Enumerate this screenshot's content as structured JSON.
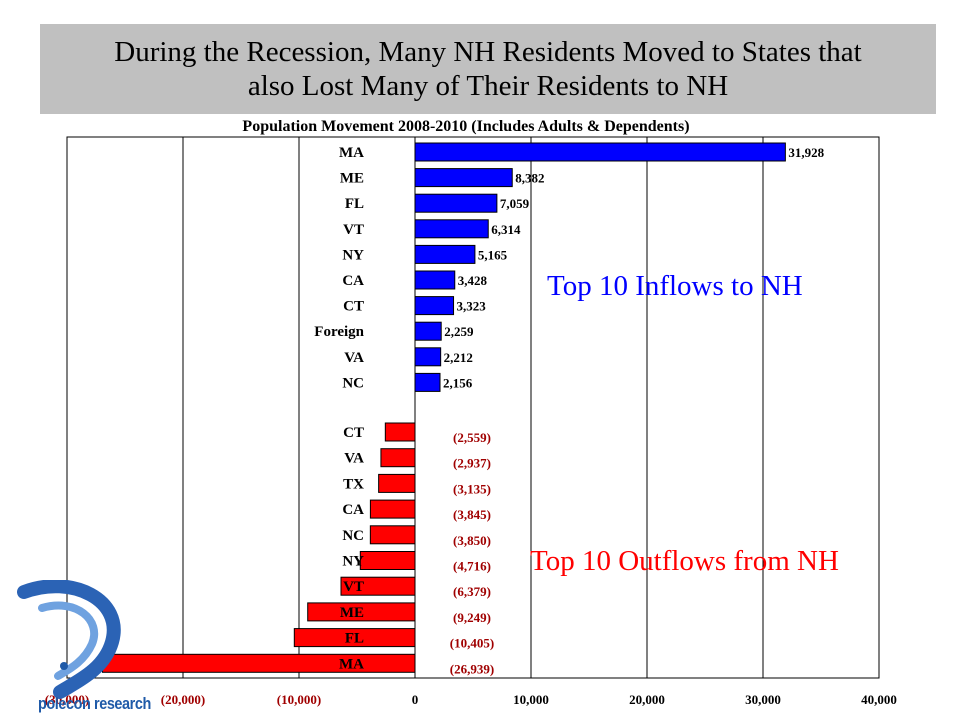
{
  "slide": {
    "title_line1": "During the Recession, Many NH Residents Moved to States that",
    "title_line2": "also Lost Many of  Their Residents to NH"
  },
  "logo": {
    "text": "polecon research"
  },
  "chart_data": {
    "type": "bar",
    "orientation": "horizontal",
    "title": "Population Movement 2008-2010 (Includes Adults & Dependents)",
    "xlim": [
      -30000,
      40000
    ],
    "x_ticks": [
      -30000,
      -20000,
      -10000,
      0,
      10000,
      20000,
      30000,
      40000
    ],
    "x_tick_labels": [
      "(30,000)",
      "(20,000)",
      "(10,000)",
      "0",
      "10,000",
      "20,000",
      "30,000",
      "40,000"
    ],
    "gridlines": true,
    "colors": {
      "inflow": "#0000ff",
      "outflow": "#ff0000",
      "negative_label": "#a00000"
    },
    "series": [
      {
        "name": "Top 10 Inflows to NH",
        "categories": [
          "MA",
          "ME",
          "FL",
          "VT",
          "NY",
          "CA",
          "CT",
          "Foreign",
          "VA",
          "NC"
        ],
        "values": [
          31928,
          8382,
          7059,
          6314,
          5165,
          3428,
          3323,
          2259,
          2212,
          2156
        ],
        "labels": [
          "31,928",
          "8,382",
          "7,059",
          "6,314",
          "5,165",
          "3,428",
          "3,323",
          "2,259",
          "2,212",
          "2,156"
        ]
      },
      {
        "name": "Top 10 Outflows from NH",
        "categories": [
          "CT",
          "VA",
          "TX",
          "CA",
          "NC",
          "NY",
          "VT",
          "ME",
          "FL",
          "MA"
        ],
        "values": [
          -2559,
          -2937,
          -3135,
          -3845,
          -3850,
          -4716,
          -6379,
          -9249,
          -10405,
          -26939
        ],
        "labels": [
          "(2,559)",
          "(2,937)",
          "(3,135)",
          "(3,845)",
          "(3,850)",
          "(4,716)",
          "(6,379)",
          "(9,249)",
          "(10,405)",
          "(26,939)"
        ]
      }
    ],
    "annotations": [
      "Top 10 Inflows to NH",
      "Top 10 Outflows from NH"
    ]
  }
}
